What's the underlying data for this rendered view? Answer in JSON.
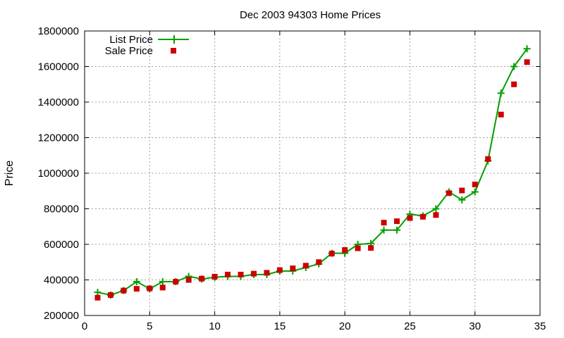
{
  "chart_data": {
    "type": "line",
    "title": "Dec 2003 94303 Home Prices",
    "xlabel": "",
    "ylabel": "Price",
    "xlim": [
      0,
      35
    ],
    "ylim": [
      200000,
      1800000
    ],
    "x_ticks": [
      0,
      5,
      10,
      15,
      20,
      25,
      30,
      35
    ],
    "y_ticks": [
      200000,
      400000,
      600000,
      800000,
      1000000,
      1200000,
      1400000,
      1600000,
      1800000
    ],
    "grid": true,
    "legend_position": "top-left",
    "series": [
      {
        "name": "List Price",
        "style": "line-plus",
        "color": "#00a000",
        "x": [
          1,
          2,
          3,
          4,
          5,
          6,
          7,
          8,
          9,
          10,
          11,
          12,
          13,
          14,
          15,
          16,
          17,
          18,
          19,
          20,
          21,
          22,
          23,
          24,
          25,
          26,
          27,
          28,
          29,
          30,
          31,
          32,
          33,
          34
        ],
        "values": [
          330000,
          315000,
          340000,
          390000,
          350000,
          390000,
          390000,
          420000,
          405000,
          415000,
          420000,
          420000,
          430000,
          430000,
          450000,
          450000,
          470000,
          490000,
          550000,
          550000,
          600000,
          605000,
          680000,
          680000,
          770000,
          760000,
          800000,
          895000,
          850000,
          895000,
          1070000,
          1450000,
          1600000,
          1700000
        ]
      },
      {
        "name": "Sale Price",
        "style": "square",
        "color": "#cc0000",
        "x": [
          1,
          2,
          3,
          4,
          5,
          6,
          7,
          8,
          9,
          10,
          11,
          12,
          13,
          14,
          15,
          16,
          17,
          18,
          19,
          20,
          21,
          22,
          23,
          24,
          25,
          26,
          27,
          28,
          29,
          30,
          31,
          32,
          33,
          34
        ],
        "values": [
          300000,
          315000,
          340000,
          350000,
          352000,
          357000,
          390000,
          400000,
          407000,
          418000,
          430000,
          430000,
          435000,
          440000,
          455000,
          465000,
          480000,
          500000,
          548000,
          568000,
          578000,
          580000,
          722000,
          730000,
          748000,
          755000,
          765000,
          888000,
          903000,
          937000,
          1080000,
          1330000,
          1500000,
          1625000
        ]
      }
    ]
  }
}
